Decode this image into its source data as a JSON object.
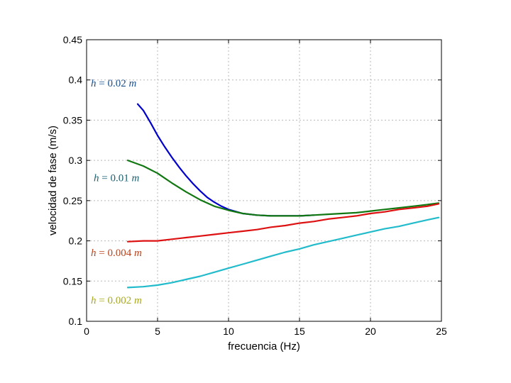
{
  "chart_data": {
    "type": "line",
    "title": "",
    "xlabel": "frecuencia (Hz)",
    "ylabel": "velocidad de fase (m/s)",
    "xlim": [
      0,
      25
    ],
    "ylim": [
      0.1,
      0.45
    ],
    "grid": true,
    "x_ticks": [
      "0",
      "5",
      "10",
      "15",
      "20",
      "25"
    ],
    "y_ticks": [
      "0.1",
      "0.15",
      "0.2",
      "0.25",
      "0.3",
      "0.35",
      "0.4",
      "0.45"
    ],
    "series": [
      {
        "name": "h = 0.02 m",
        "color": "#0000cc",
        "x": [
          3.6,
          4.0,
          4.5,
          5.0,
          5.5,
          6.0,
          6.5,
          7.0,
          7.5,
          8.0,
          8.5,
          9.0,
          9.5,
          10.0,
          11.0,
          12.0,
          13.0,
          14.0,
          15.0,
          16.0
        ],
        "y": [
          0.37,
          0.362,
          0.347,
          0.331,
          0.317,
          0.304,
          0.292,
          0.281,
          0.271,
          0.262,
          0.254,
          0.248,
          0.243,
          0.239,
          0.234,
          0.232,
          0.231,
          0.231,
          0.231,
          0.232
        ]
      },
      {
        "name": "h = 0.01 m",
        "color": "#117711",
        "x": [
          2.9,
          4.0,
          5.0,
          6.0,
          7.0,
          8.0,
          9.0,
          10.0,
          11.0,
          12.0,
          13.0,
          14.0,
          15.0,
          16.0,
          17.0,
          18.0,
          19.0,
          20.0,
          21.0,
          22.0,
          23.0,
          24.0,
          24.8
        ],
        "y": [
          0.3,
          0.293,
          0.284,
          0.272,
          0.261,
          0.251,
          0.243,
          0.238,
          0.234,
          0.232,
          0.231,
          0.231,
          0.231,
          0.232,
          0.233,
          0.234,
          0.235,
          0.237,
          0.239,
          0.241,
          0.243,
          0.245,
          0.247
        ]
      },
      {
        "name": "h = 0.004 m",
        "color": "#dd1111",
        "x": [
          2.9,
          4.0,
          5.0,
          6.0,
          7.0,
          8.0,
          9.0,
          10.0,
          11.0,
          12.0,
          13.0,
          14.0,
          15.0,
          16.0,
          17.0,
          18.0,
          19.0,
          20.0,
          21.0,
          22.0,
          23.0,
          24.0,
          24.8
        ],
        "y": [
          0.199,
          0.2,
          0.2,
          0.202,
          0.204,
          0.206,
          0.208,
          0.21,
          0.212,
          0.214,
          0.217,
          0.219,
          0.222,
          0.224,
          0.227,
          0.229,
          0.231,
          0.234,
          0.236,
          0.239,
          0.241,
          0.243,
          0.246
        ]
      },
      {
        "name": "h = 0.002 m",
        "color": "#22bbcc",
        "x": [
          2.9,
          4.0,
          5.0,
          6.0,
          7.0,
          8.0,
          9.0,
          10.0,
          11.0,
          12.0,
          13.0,
          14.0,
          15.0,
          16.0,
          17.0,
          18.0,
          19.0,
          20.0,
          21.0,
          22.0,
          23.0,
          24.0,
          24.8
        ],
        "y": [
          0.142,
          0.143,
          0.145,
          0.148,
          0.152,
          0.156,
          0.161,
          0.166,
          0.171,
          0.176,
          0.181,
          0.186,
          0.19,
          0.195,
          0.199,
          0.203,
          0.207,
          0.211,
          0.215,
          0.218,
          0.222,
          0.226,
          0.229
        ]
      }
    ],
    "annotations": [
      {
        "text": "h = 0.02 m",
        "math": "h",
        "rest": " = 0.02 ",
        "unit": "m",
        "color": "#1a4f8f",
        "x": 0.3,
        "y": 0.392
      },
      {
        "text": "h = 0.01 m",
        "math": "h",
        "rest": " = 0.01 ",
        "unit": "m",
        "color": "#1a5f6f",
        "x": 0.5,
        "y": 0.274
      },
      {
        "text": "h = 0.004 m",
        "math": "h",
        "rest": " = 0.004 ",
        "unit": "m",
        "color": "#b8441f",
        "x": 0.3,
        "y": 0.181
      },
      {
        "text": "h = 0.002 m",
        "math": "h",
        "rest": " = 0.002 ",
        "unit": "m",
        "color": "#a8a820",
        "x": 0.3,
        "y": 0.122
      }
    ]
  }
}
